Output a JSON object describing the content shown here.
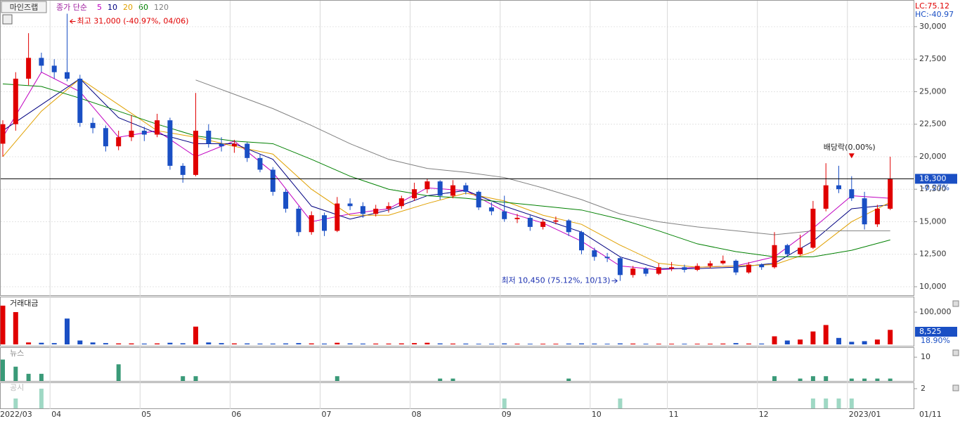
{
  "chart_data": {
    "type": "candlestick",
    "title": "마인즈랩",
    "ma_label": "종가 단순",
    "up_color": "#e00000",
    "down_color": "#1a4fc4",
    "ohlc": [
      [
        21000,
        22800,
        20000,
        22500
      ],
      [
        22500,
        26500,
        22000,
        26000
      ],
      [
        26000,
        29500,
        25500,
        27600
      ],
      [
        27600,
        28000,
        26500,
        27000
      ],
      [
        27000,
        27500,
        26000,
        26500
      ],
      [
        26500,
        31000,
        25800,
        26000
      ],
      [
        26000,
        26300,
        22300,
        22600
      ],
      [
        22600,
        23000,
        21800,
        22200
      ],
      [
        22200,
        22400,
        20400,
        20800
      ],
      [
        20800,
        22000,
        20500,
        21500
      ],
      [
        21500,
        23200,
        21200,
        22000
      ],
      [
        22000,
        22300,
        21200,
        21700
      ],
      [
        21700,
        23300,
        21500,
        22800
      ],
      [
        22800,
        23000,
        19000,
        19300
      ],
      [
        19300,
        19500,
        18000,
        18600
      ],
      [
        18600,
        24900,
        18500,
        22000
      ],
      [
        22000,
        22500,
        20700,
        21000
      ],
      [
        21000,
        21500,
        20400,
        20800
      ],
      [
        20800,
        21300,
        20300,
        21000
      ],
      [
        21000,
        21100,
        19600,
        19900
      ],
      [
        19900,
        20200,
        18800,
        19000
      ],
      [
        19000,
        19200,
        17000,
        17300
      ],
      [
        17300,
        17500,
        15700,
        16000
      ],
      [
        16000,
        16200,
        13900,
        14200
      ],
      [
        14200,
        15800,
        14000,
        15500
      ],
      [
        15500,
        15700,
        13900,
        14300
      ],
      [
        14300,
        16900,
        14200,
        16400
      ],
      [
        16400,
        16800,
        15900,
        16200
      ],
      [
        16200,
        16500,
        15300,
        15600
      ],
      [
        15600,
        16300,
        15400,
        16000
      ],
      [
        16000,
        16500,
        15700,
        16200
      ],
      [
        16200,
        17000,
        16000,
        16800
      ],
      [
        16800,
        18000,
        16600,
        17500
      ],
      [
        17500,
        18300,
        17200,
        18100
      ],
      [
        18100,
        18200,
        16700,
        17000
      ],
      [
        17000,
        18200,
        16800,
        17800
      ],
      [
        17800,
        18000,
        17100,
        17300
      ],
      [
        17300,
        17400,
        15900,
        16100
      ],
      [
        16100,
        16500,
        15500,
        15800
      ],
      [
        15800,
        17000,
        15000,
        15200
      ],
      [
        15200,
        15600,
        14900,
        15300
      ],
      [
        15300,
        15500,
        14300,
        14600
      ],
      [
        14600,
        15200,
        14400,
        15000
      ],
      [
        15000,
        15400,
        14800,
        15100
      ],
      [
        15100,
        15200,
        13900,
        14200
      ],
      [
        14200,
        14300,
        12500,
        12800
      ],
      [
        12800,
        13000,
        12000,
        12300
      ],
      [
        12300,
        12600,
        11900,
        12200
      ],
      [
        12200,
        12300,
        10450,
        10900
      ],
      [
        10900,
        11600,
        10700,
        11400
      ],
      [
        11400,
        11500,
        10800,
        11000
      ],
      [
        11000,
        11800,
        10900,
        11500
      ],
      [
        11400,
        11900,
        11200,
        11500
      ],
      [
        11500,
        11700,
        11100,
        11300
      ],
      [
        11300,
        11800,
        11200,
        11600
      ],
      [
        11600,
        12000,
        11400,
        11800
      ],
      [
        11800,
        12400,
        11700,
        12000
      ],
      [
        12000,
        12100,
        10900,
        11100
      ],
      [
        11100,
        11900,
        11000,
        11700
      ],
      [
        11700,
        11800,
        11300,
        11500
      ],
      [
        11500,
        14200,
        11400,
        13200
      ],
      [
        13200,
        13300,
        12300,
        12500
      ],
      [
        12500,
        14000,
        12400,
        13000
      ],
      [
        13000,
        16600,
        12900,
        16000
      ],
      [
        16000,
        19500,
        15800,
        17800
      ],
      [
        17800,
        19300,
        17200,
        17500
      ],
      [
        17500,
        18500,
        16600,
        16800
      ],
      [
        16800,
        17300,
        14400,
        14800
      ],
      [
        14800,
        16300,
        14600,
        16000
      ],
      [
        16000,
        20000,
        15900,
        18300
      ]
    ],
    "categories": [
      "2022/03",
      null,
      null,
      null,
      "04",
      null,
      null,
      null,
      null,
      null,
      null,
      "05",
      null,
      null,
      null,
      null,
      null,
      null,
      "06",
      null,
      null,
      null,
      null,
      null,
      null,
      "07",
      null,
      null,
      null,
      null,
      null,
      null,
      "08",
      null,
      null,
      null,
      null,
      null,
      null,
      "09",
      null,
      null,
      null,
      null,
      null,
      null,
      "10",
      null,
      null,
      null,
      null,
      null,
      "11",
      null,
      null,
      null,
      null,
      null,
      null,
      "12",
      null,
      null,
      null,
      null,
      null,
      null,
      "2023/01",
      null,
      null,
      null
    ],
    "x_end_label": "01/11",
    "ylim": [
      9350,
      30970
    ],
    "yticks": [
      {
        "value": 10000,
        "label": "10,000"
      },
      {
        "value": 12500,
        "label": "12,500"
      },
      {
        "value": 15000,
        "label": "15,000"
      },
      {
        "value": 17500,
        "label": "17,500"
      },
      {
        "value": 20000,
        "label": "20,000"
      },
      {
        "value": 22500,
        "label": "22,500"
      },
      {
        "value": 25000,
        "label": "25,000"
      },
      {
        "value": 27500,
        "label": "27,500"
      },
      {
        "value": 30000,
        "label": "30,000"
      }
    ],
    "ma": [
      {
        "name": "5",
        "color": "#c000c0",
        "x": [
          0,
          3,
          6,
          9,
          12,
          15,
          18,
          21,
          24,
          27,
          30,
          33,
          36,
          39,
          42,
          45,
          48,
          51,
          54,
          57,
          60,
          63,
          66,
          69
        ],
        "values": [
          21500,
          26500,
          25000,
          21500,
          22000,
          20000,
          21200,
          18800,
          15000,
          15600,
          16000,
          17600,
          17400,
          15800,
          14900,
          13500,
          11600,
          11300,
          11500,
          11600,
          12300,
          14500,
          17000,
          16800
        ]
      },
      {
        "name": "10",
        "color": "#000080",
        "x": [
          0,
          3,
          6,
          9,
          12,
          15,
          18,
          21,
          24,
          27,
          30,
          33,
          36,
          39,
          42,
          45,
          48,
          51,
          54,
          57,
          60,
          63,
          66,
          69
        ],
        "values": [
          22000,
          24000,
          26000,
          23000,
          21800,
          21000,
          21000,
          19800,
          16200,
          15200,
          15900,
          17000,
          17400,
          16200,
          15200,
          14200,
          12300,
          11400,
          11400,
          11500,
          11800,
          13500,
          16000,
          16300
        ]
      },
      {
        "name": "20",
        "color": "#e0a000",
        "x": [
          0,
          3,
          6,
          9,
          12,
          15,
          18,
          21,
          24,
          27,
          30,
          33,
          36,
          39,
          42,
          45,
          48,
          51,
          54,
          57,
          60,
          63,
          66,
          69
        ],
        "values": [
          20000,
          23500,
          26000,
          24000,
          22000,
          21500,
          20800,
          20200,
          17500,
          15500,
          15500,
          16400,
          17200,
          16600,
          15500,
          14800,
          13200,
          11800,
          11500,
          11600,
          11700,
          12700,
          15000,
          16500
        ]
      },
      {
        "name": "60",
        "color": "#008000",
        "x": [
          0,
          3,
          6,
          9,
          12,
          15,
          18,
          21,
          24,
          27,
          30,
          33,
          36,
          39,
          42,
          45,
          48,
          51,
          54,
          57,
          60,
          63,
          66,
          69
        ],
        "values": [
          25600,
          25400,
          24500,
          23500,
          22500,
          21600,
          21200,
          21000,
          19800,
          18500,
          17500,
          17000,
          16800,
          16500,
          16200,
          15900,
          15200,
          14300,
          13300,
          12700,
          12300,
          12300,
          12800,
          13600
        ]
      },
      {
        "name": "120",
        "color": "#808080",
        "x": [
          15,
          18,
          21,
          24,
          27,
          30,
          33,
          36,
          39,
          42,
          45,
          48,
          51,
          54,
          57,
          60,
          63,
          66,
          69
        ],
        "values": [
          25900,
          24800,
          23700,
          22400,
          21000,
          19800,
          19100,
          18800,
          18400,
          17600,
          16700,
          15600,
          15000,
          14600,
          14300,
          14000,
          14300,
          14300,
          14300
        ]
      }
    ],
    "last": {
      "value": 18300,
      "label": "18,300",
      "change": "-0.27%"
    },
    "lc": "LC:75.12",
    "hc": "HC:-40.97",
    "annotations": [
      {
        "text": "최고 31,000 (-40.97%, 04/06)",
        "index": 5,
        "value": 31000,
        "color": "#e00000"
      },
      {
        "text": "최저 10,450 (75.12%, 10/13)",
        "index": 48,
        "value": 10450,
        "color": "#1a2fb0"
      },
      {
        "text": "배당락(0.00%)",
        "index": 66,
        "value": 19500,
        "color": "#222222"
      }
    ],
    "volume": {
      "label": "거래대금",
      "ylim": [
        0,
        148000
      ],
      "yticks": [
        {
          "value": 100000,
          "label": "100,000"
        }
      ],
      "last_label": "8,525",
      "ratio": "18.90%",
      "values": [
        120000,
        100000,
        6000,
        5000,
        4000,
        80000,
        12000,
        6000,
        4000,
        3000,
        3000,
        2500,
        3000,
        5000,
        3500,
        55000,
        6000,
        4000,
        3000,
        3000,
        2500,
        2500,
        3000,
        4000,
        3000,
        2500,
        5000,
        3000,
        2500,
        2500,
        2500,
        3000,
        4000,
        5000,
        3000,
        2500,
        2500,
        2000,
        2000,
        3000,
        2000,
        2000,
        2000,
        2000,
        2500,
        3000,
        2500,
        2000,
        3000,
        2500,
        2000,
        2000,
        2000,
        2000,
        2000,
        2000,
        2500,
        4000,
        2500,
        2500,
        25000,
        12000,
        15000,
        40000,
        60000,
        20000,
        8000,
        10000,
        15000,
        45000
      ]
    },
    "news": {
      "label": "뉴스",
      "color": "#3a9a78",
      "ylim": [
        0,
        13.6
      ],
      "yticks": [
        10
      ],
      "x": [
        0,
        1,
        2,
        3,
        9,
        14,
        15,
        26,
        34,
        35,
        44,
        60,
        62,
        63,
        64,
        66,
        67,
        68,
        69
      ],
      "values": [
        9,
        6,
        3,
        3,
        7,
        2,
        2,
        2,
        1,
        1,
        1,
        2,
        1,
        2,
        2,
        1,
        1,
        1,
        1
      ]
    },
    "disclosure": {
      "label": "공시",
      "color": "#9fd8c4",
      "ylim": [
        0,
        2.5
      ],
      "yticks": [
        2
      ],
      "x": [
        1,
        3,
        39,
        48,
        63,
        64,
        65,
        66
      ],
      "values": [
        1,
        2,
        1,
        1,
        1,
        1,
        1,
        1
      ]
    }
  }
}
